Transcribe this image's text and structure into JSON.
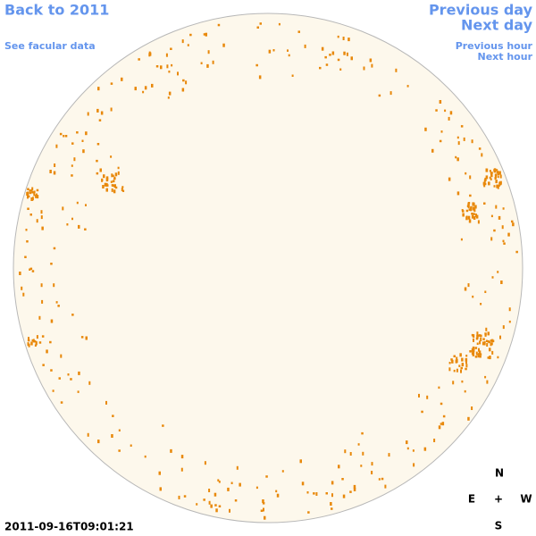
{
  "navigation": {
    "back": "Back to 2011",
    "facular": "See facular data",
    "previous_day": "Previous day",
    "next_day": "Next day",
    "previous_hour": "Previous hour",
    "next_hour": "Next hour"
  },
  "timestamp": "2011-09-16T09:01:21",
  "compass": {
    "north": "N",
    "east": "E",
    "center": "+",
    "west": "W",
    "south": "S"
  }
}
